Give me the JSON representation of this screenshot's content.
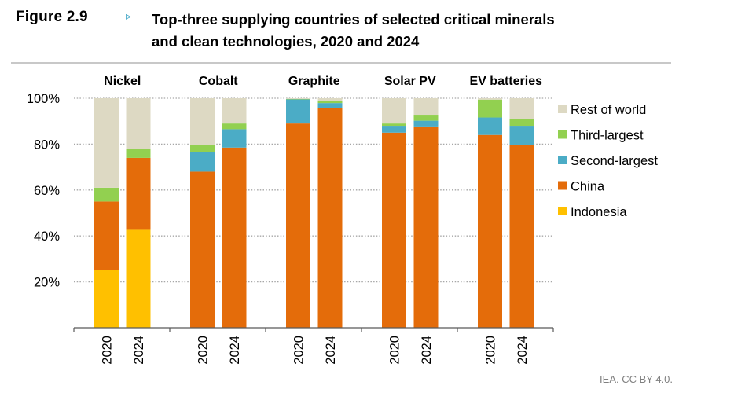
{
  "header": {
    "figure_label": "Figure 2.9",
    "figure_arrow": "▹",
    "title_line1": "Top-three supplying countries of selected critical minerals",
    "title_line2": "and clean technologies, 2020 and 2024"
  },
  "source": "IEA. CC BY 4.0.",
  "colors": {
    "Rest of world": "#ddd9c3",
    "Third-largest": "#92d050",
    "Second-largest": "#4bacc6",
    "China": "#e46c0a",
    "Indonesia": "#ffc000",
    "gridline": "#a6a6a6",
    "axis": "#595959"
  },
  "chart_data": {
    "type": "bar",
    "stacked": true,
    "title": "Top-three supplying countries of selected critical minerals and clean technologies, 2020 and 2024",
    "xlabel": "",
    "ylabel": "",
    "ylim": [
      0,
      100
    ],
    "yticks": [
      20,
      40,
      60,
      80,
      100
    ],
    "ytick_labels": [
      "20%",
      "40%",
      "60%",
      "80%",
      "100%"
    ],
    "grid": true,
    "legend_position": "right",
    "legend": [
      "Rest of world",
      "Third-largest",
      "Second-largest",
      "China",
      "Indonesia"
    ],
    "groups": [
      "Nickel",
      "Cobalt",
      "Graphite",
      "Solar PV",
      "EV batteries"
    ],
    "years": [
      "2020",
      "2024"
    ],
    "bars": [
      {
        "group": "Nickel",
        "year": "2020",
        "Indonesia": 25,
        "China": 30,
        "Second-largest": 0,
        "Third-largest": 6,
        "Rest of world": 39
      },
      {
        "group": "Nickel",
        "year": "2024",
        "Indonesia": 43,
        "China": 31,
        "Second-largest": 0,
        "Third-largest": 4,
        "Rest of world": 22
      },
      {
        "group": "Cobalt",
        "year": "2020",
        "Indonesia": 0,
        "China": 68,
        "Second-largest": 8.5,
        "Third-largest": 3,
        "Rest of world": 20.5
      },
      {
        "group": "Cobalt",
        "year": "2024",
        "Indonesia": 0,
        "China": 78.5,
        "Second-largest": 8,
        "Third-largest": 2.5,
        "Rest of world": 11
      },
      {
        "group": "Graphite",
        "year": "2020",
        "Indonesia": 0,
        "China": 89,
        "Second-largest": 10.5,
        "Third-largest": 0.2,
        "Rest of world": 0.3
      },
      {
        "group": "Graphite",
        "year": "2024",
        "Indonesia": 0,
        "China": 95.7,
        "Second-largest": 2.2,
        "Third-largest": 0.8,
        "Rest of world": 1.3
      },
      {
        "group": "Solar PV",
        "year": "2020",
        "Indonesia": 0,
        "China": 85,
        "Second-largest": 3,
        "Third-largest": 1,
        "Rest of world": 11
      },
      {
        "group": "Solar PV",
        "year": "2024",
        "Indonesia": 0,
        "China": 87.7,
        "Second-largest": 2.5,
        "Third-largest": 2.6,
        "Rest of world": 7.2
      },
      {
        "group": "EV batteries",
        "year": "2020",
        "Indonesia": 0,
        "China": 84,
        "Second-largest": 7.6,
        "Third-largest": 7.8,
        "Rest of world": 0.6
      },
      {
        "group": "EV batteries",
        "year": "2024",
        "Indonesia": 0,
        "China": 79.8,
        "Second-largest": 8.2,
        "Third-largest": 3.1,
        "Rest of world": 8.9
      }
    ],
    "stack_order": [
      "Indonesia",
      "China",
      "Second-largest",
      "Third-largest",
      "Rest of world"
    ]
  }
}
